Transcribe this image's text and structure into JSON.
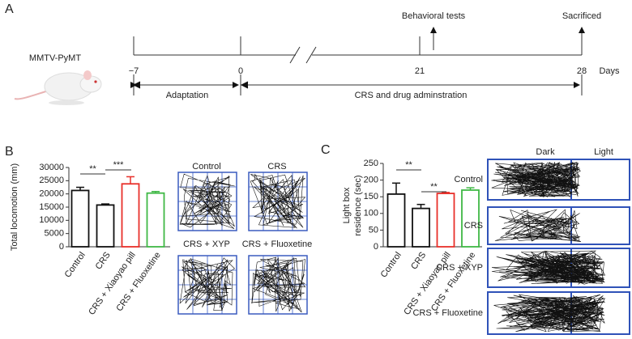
{
  "panels": {
    "a": "A",
    "b": "B",
    "c": "C"
  },
  "timeline": {
    "strain": "MMTV-PyMT",
    "ticks": [
      {
        "value": -7,
        "label": "−7"
      },
      0,
      21,
      28
    ],
    "unit": "Days",
    "events": [
      "Behavioral tests",
      "Sacrificed"
    ],
    "phases": [
      "Adaptation",
      "CRS and drug adminstration"
    ]
  },
  "chart_data": [
    {
      "type": "bar",
      "ylabel": "Total locomotion (mm)",
      "categories": [
        "Control",
        "CRS",
        "CRS + Xiaoyao pill",
        "CRS + Fluoxetine"
      ],
      "values": [
        21300,
        15800,
        23800,
        20300
      ],
      "errors": [
        1200,
        400,
        2700,
        600
      ],
      "colors": [
        "#111111",
        "#111111",
        "#e8302a",
        "#3fb845"
      ],
      "ylim": [
        0,
        30000
      ],
      "yticks": [
        0,
        5000,
        10000,
        15000,
        20000,
        25000,
        30000
      ],
      "significance": [
        "**",
        "***"
      ]
    },
    {
      "type": "bar",
      "ylabel": [
        "Light box",
        "residence (sec)"
      ],
      "categories": [
        "Control",
        "CRS",
        "CRS + Xiaoyao pill",
        "CRS + Fluoxetine"
      ],
      "values": [
        158,
        115,
        160,
        170
      ],
      "errors": [
        33,
        12,
        3,
        7
      ],
      "colors": [
        "#111111",
        "#111111",
        "#e8302a",
        "#3fb845"
      ],
      "ylim": [
        0,
        250
      ],
      "yticks": [
        0,
        50,
        100,
        150,
        200,
        250
      ],
      "significance": [
        "**",
        "**"
      ]
    }
  ],
  "open_field": {
    "labels": [
      "Control",
      "CRS",
      "CRS + XYP",
      "CRS + Fluoxetine"
    ]
  },
  "light_dark": {
    "columns": [
      "Dark",
      "Light"
    ],
    "labels": [
      "Control",
      "CRS",
      "CRS + XYP",
      "CRS + Fluoxetine"
    ]
  }
}
